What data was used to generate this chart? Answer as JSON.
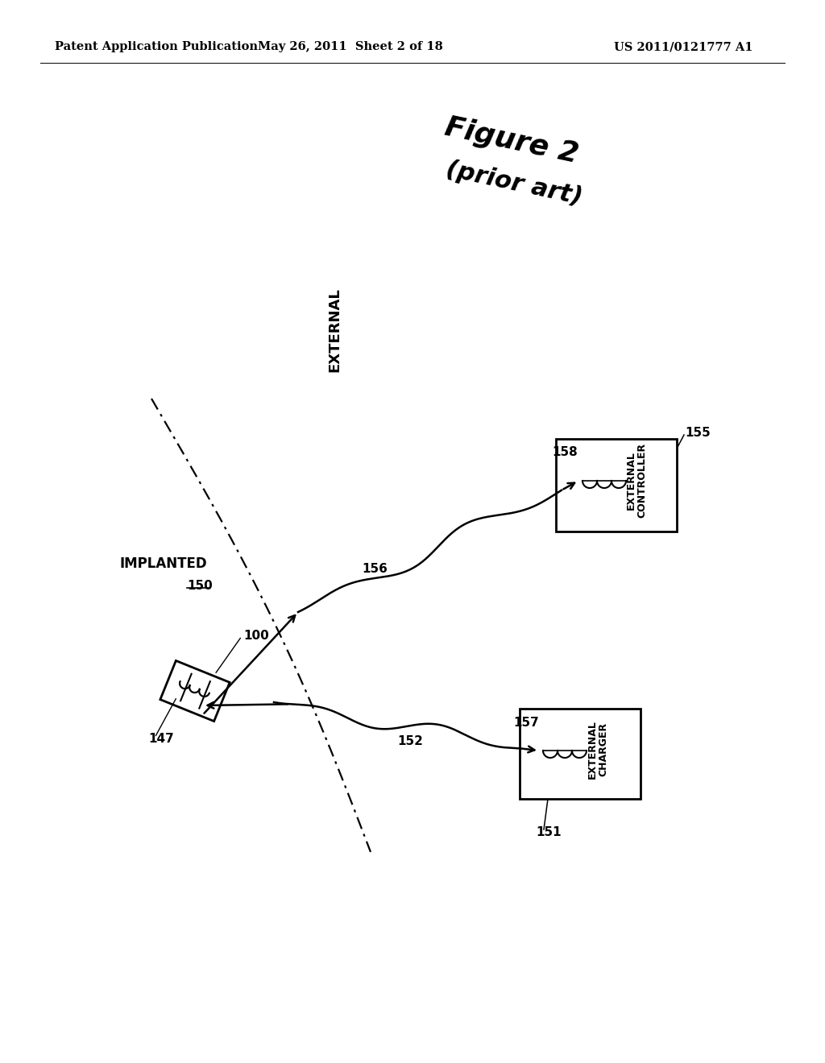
{
  "bg_color": "#ffffff",
  "header_left": "Patent Application Publication",
  "header_mid": "May 26, 2011  Sheet 2 of 18",
  "header_right": "US 2011/0121777 A1",
  "figure_label": "Figure 2",
  "figure_sublabel": "(prior art)",
  "label_external": "EXTERNAL",
  "label_implanted": "IMPLANTED",
  "label_150": "150",
  "label_100": "100",
  "label_147": "147",
  "label_155": "155",
  "label_158": "158",
  "label_156": "156",
  "label_152": "152",
  "label_157": "157",
  "label_151": "151",
  "box1_line1": "EXTERNAL",
  "box1_line2": "CONTROLLER",
  "box2_line1": "EXTERNAL",
  "box2_line2": "CHARGER"
}
